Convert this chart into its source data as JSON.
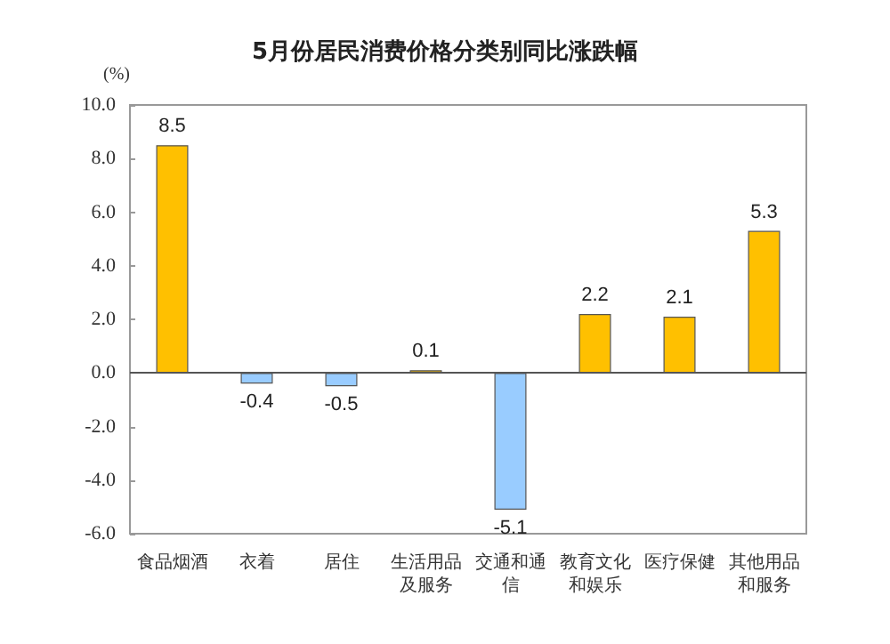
{
  "chart_data": {
    "type": "bar",
    "title": "5月份居民消费价格分类别同比涨跌幅",
    "ylabel": "(%)",
    "categories": [
      "食品烟酒",
      "衣着",
      "居住",
      "生活用品及服务",
      "交通和通信",
      "教育文化和娱乐",
      "医疗保健",
      "其他用品和服务"
    ],
    "values": [
      8.5,
      -0.4,
      -0.5,
      0.1,
      -5.1,
      2.2,
      2.1,
      5.3
    ],
    "colors": [
      "#ffc000",
      "#99ccff",
      "#99ccff",
      "#ffc000",
      "#99ccff",
      "#ffc000",
      "#ffc000",
      "#ffc000"
    ],
    "ylim": [
      -6,
      10
    ],
    "yticks": [
      {
        "value": -6,
        "label": "-6.0"
      },
      {
        "value": -4,
        "label": "-4.0"
      },
      {
        "value": -2,
        "label": "-2.0"
      },
      {
        "value": 0,
        "label": "0.0"
      },
      {
        "value": 2,
        "label": "2.0"
      },
      {
        "value": 4,
        "label": "4.0"
      },
      {
        "value": 6,
        "label": "6.0"
      },
      {
        "value": 8,
        "label": "8.0"
      },
      {
        "value": 10,
        "label": "10.0"
      }
    ],
    "data_labels": true
  }
}
